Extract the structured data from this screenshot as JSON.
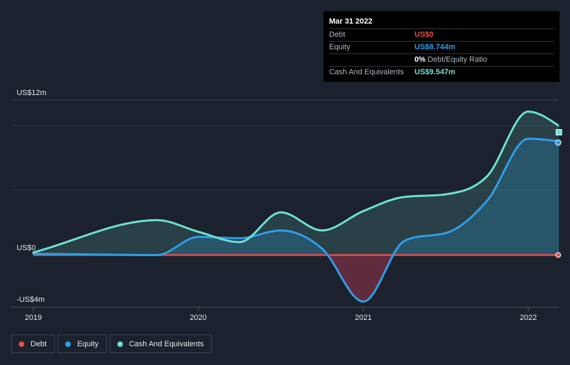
{
  "colors": {
    "background": "#1b222d",
    "debt": "#e64c4c",
    "equity": "#2f9ee8",
    "cash": "#6de0cf",
    "grid": "#2c3441",
    "axis_text": "#e6e8ec"
  },
  "tooltip": {
    "date": "Mar 31 2022",
    "rows": [
      {
        "label": "Debt",
        "value": "US$0",
        "color": "#e64c4c"
      },
      {
        "label": "Equity",
        "value": "US$8.744m",
        "color": "#2f9ee8"
      },
      {
        "label": "",
        "value": "0%",
        "suffix": " Debt/Equity Ratio",
        "color": "#ffffff"
      },
      {
        "label": "Cash And Equivalents",
        "value": "US$9.547m",
        "color": "#6de0cf"
      }
    ]
  },
  "legend": [
    {
      "label": "Debt",
      "color": "#e64c4c"
    },
    {
      "label": "Equity",
      "color": "#2f9ee8"
    },
    {
      "label": "Cash And Equivalents",
      "color": "#6de0cf"
    }
  ],
  "chart_data": {
    "type": "area",
    "title": "",
    "xlabel": "",
    "ylabel": "",
    "y_tick_labels": [
      "US$12m",
      "US$0",
      "-US$4m"
    ],
    "y_tick_values": [
      12,
      0,
      -4
    ],
    "grid_values": [
      12,
      10,
      5,
      -4
    ],
    "x_tick_labels": [
      "2019",
      "2020",
      "2021",
      "2022"
    ],
    "x_tick_values": [
      2019.0,
      2020.0,
      2021.0,
      2022.0
    ],
    "xlim": [
      2018.75,
      2022.25
    ],
    "ylim": [
      -4.0,
      12.0
    ],
    "units": "US$ millions",
    "series": [
      {
        "name": "Debt",
        "color": "#e64c4c",
        "x": [
          2019.0,
          2022.25
        ],
        "values": [
          0,
          0
        ]
      },
      {
        "name": "Equity",
        "color": "#2f9ee8",
        "x": [
          2019.0,
          2019.75,
          2020.0,
          2020.25,
          2020.5,
          2020.75,
          2021.0,
          2021.25,
          2021.5,
          2021.75,
          2022.0,
          2022.25
        ],
        "values": [
          0.1,
          0.0,
          1.4,
          1.3,
          1.9,
          0.5,
          -3.6,
          1.1,
          1.7,
          4.2,
          9.0,
          8.7
        ]
      },
      {
        "name": "Cash And Equivalents",
        "color": "#6de0cf",
        "x": [
          2019.0,
          2019.75,
          2020.0,
          2020.25,
          2020.5,
          2020.75,
          2021.0,
          2021.25,
          2021.5,
          2021.75,
          2022.0,
          2022.25
        ],
        "values": [
          0.2,
          2.7,
          1.8,
          1.0,
          3.3,
          1.9,
          3.4,
          4.5,
          4.7,
          6.1,
          11.1,
          9.5
        ]
      }
    ]
  }
}
